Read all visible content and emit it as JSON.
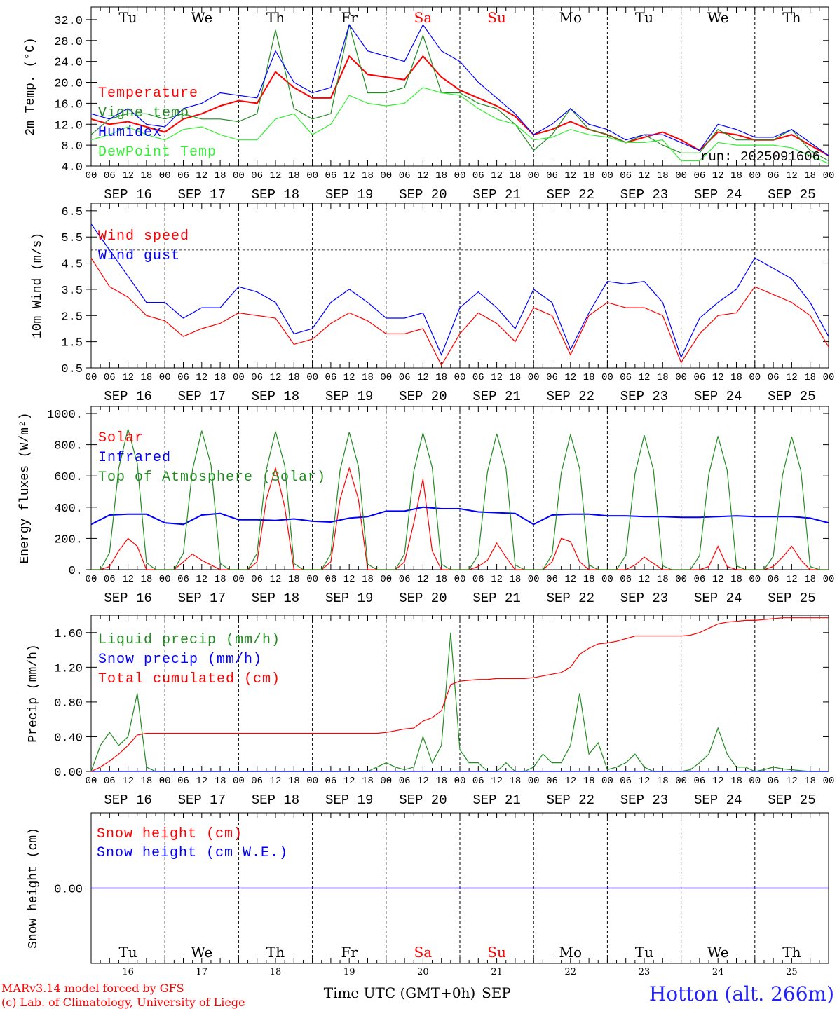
{
  "chart_data": [
    {
      "type": "line",
      "id": "temp",
      "ylabel": "2m Temp. (°C)",
      "ylim": [
        4.0,
        34.4
      ],
      "yticks": [
        4,
        8,
        12,
        16,
        20,
        24,
        28,
        32
      ],
      "ytick_labels": [
        "4.0",
        "8.0",
        "12.0",
        "16.0",
        "20.0",
        "24.0",
        "28.0",
        "32.0"
      ],
      "x_step_hours": 6,
      "series": [
        {
          "name": "Temperature",
          "color": "#ff0000",
          "values": [
            13,
            12,
            12.5,
            11.5,
            10.5,
            13,
            14,
            15.5,
            16.5,
            16,
            22,
            19,
            17,
            17,
            25,
            21.5,
            21,
            20.5,
            25,
            21,
            18.5,
            17,
            15.5,
            13.5,
            10,
            11,
            12.5,
            11,
            10,
            8.5,
            9.5,
            10.5,
            9,
            7,
            10.5,
            10,
            9,
            9,
            10,
            8,
            6
          ]
        },
        {
          "name": "Vigne temp",
          "color": "#228b22",
          "values": [
            10,
            13,
            14,
            14,
            13,
            14,
            13,
            13,
            12.5,
            14,
            30,
            15,
            13,
            14,
            31,
            18,
            18,
            19,
            29,
            18,
            18,
            16,
            15,
            12,
            7,
            10,
            15,
            11,
            10,
            8.5,
            10,
            8,
            6.5,
            6.5,
            11,
            9,
            9,
            9,
            11,
            7,
            5
          ]
        },
        {
          "name": "Humidex",
          "color": "#0000ff",
          "values": [
            14,
            13,
            15,
            12,
            11.5,
            15,
            16,
            18,
            17.5,
            17,
            26,
            20,
            18,
            19,
            31,
            26,
            25,
            24,
            31,
            26,
            24,
            20,
            17,
            14,
            10,
            12,
            15,
            12,
            11,
            9,
            10,
            10,
            8.5,
            7,
            12,
            11,
            9.5,
            9.5,
            11,
            8.5,
            6
          ]
        },
        {
          "name": "DewPoint Temp",
          "color": "#33ee33",
          "values": [
            9,
            10,
            11.5,
            10,
            9,
            11,
            11.5,
            10,
            9,
            9,
            13,
            14,
            10,
            12,
            17.5,
            16,
            15.5,
            16,
            19,
            18,
            17.5,
            15,
            13,
            12,
            9,
            9.5,
            11,
            10,
            9.5,
            8.5,
            8.5,
            9,
            5,
            5,
            8.5,
            8,
            8,
            8,
            7.5,
            6,
            4.5
          ]
        }
      ],
      "annotation": "run: 2025091606"
    },
    {
      "type": "line",
      "id": "wind",
      "ylabel": "10m Wind (m/s)",
      "ylim": [
        0.5,
        6.79
      ],
      "yticks": [
        0.5,
        1.5,
        2.5,
        3.5,
        4.5,
        5.5,
        6.5
      ],
      "ytick_labels": [
        "0.5",
        "1.5",
        "2.5",
        "3.5",
        "4.5",
        "5.5",
        "6.5"
      ],
      "reference_line": 5.0,
      "x_step_hours": 6,
      "series": [
        {
          "name": "Wind speed",
          "color": "#ff0000",
          "values": [
            4.7,
            3.6,
            3.2,
            2.5,
            2.3,
            1.7,
            2.0,
            2.2,
            2.6,
            2.5,
            2.4,
            1.4,
            1.6,
            2.2,
            2.6,
            2.3,
            1.8,
            1.8,
            2.0,
            0.6,
            1.8,
            2.6,
            2.2,
            1.5,
            2.8,
            2.5,
            1.0,
            2.5,
            3.0,
            2.8,
            2.8,
            2.5,
            0.7,
            1.8,
            2.5,
            2.6,
            3.6,
            3.3,
            3.0,
            2.5,
            1.3
          ]
        },
        {
          "name": "Wind gust",
          "color": "#0000ff",
          "values": [
            6.0,
            5.0,
            4.0,
            3.0,
            3.0,
            2.4,
            2.8,
            2.8,
            3.6,
            3.4,
            3.0,
            1.8,
            2.0,
            3.0,
            3.5,
            3.0,
            2.4,
            2.4,
            2.6,
            1.0,
            2.8,
            3.4,
            2.8,
            2.0,
            3.5,
            3.0,
            1.2,
            2.6,
            3.8,
            3.7,
            3.8,
            3.0,
            0.9,
            2.4,
            3.0,
            3.5,
            4.7,
            4.3,
            3.9,
            3.0,
            1.7
          ]
        }
      ]
    },
    {
      "type": "line",
      "id": "energy",
      "ylabel": "Energy fluxes (W/m²)",
      "ylim": [
        0,
        1045
      ],
      "yticks": [
        0,
        200,
        400,
        600,
        800,
        1000
      ],
      "ytick_labels": [
        "0.",
        "200.",
        "400.",
        "600.",
        "800.",
        "1000."
      ],
      "x_step_hours": 3,
      "series": [
        {
          "name": "Solar",
          "color": "#ff0000",
          "x_step_hours": 3,
          "values": [
            0,
            0,
            20,
            120,
            200,
            150,
            0,
            0,
            0,
            0,
            50,
            100,
            60,
            30,
            0,
            0,
            0,
            0,
            50,
            450,
            650,
            400,
            0,
            0,
            0,
            0,
            50,
            450,
            650,
            450,
            0,
            0,
            0,
            0,
            50,
            300,
            580,
            120,
            0,
            0,
            0,
            0,
            20,
            60,
            170,
            80,
            0,
            0,
            0,
            0,
            50,
            200,
            180,
            50,
            0,
            0,
            0,
            0,
            0,
            30,
            80,
            40,
            0,
            0,
            0,
            0,
            0,
            20,
            150,
            20,
            0,
            0,
            0,
            0,
            20,
            80,
            150,
            60,
            0,
            0,
            0
          ]
        },
        {
          "name": "Infrared",
          "color": "#0000ff",
          "x_step_hours": 6,
          "values": [
            290,
            350,
            355,
            355,
            300,
            290,
            350,
            360,
            320,
            320,
            315,
            325,
            310,
            305,
            330,
            340,
            375,
            375,
            400,
            390,
            390,
            370,
            365,
            360,
            290,
            350,
            355,
            355,
            345,
            345,
            340,
            340,
            335,
            335,
            340,
            345,
            340,
            340,
            340,
            330,
            300
          ]
        },
        {
          "name": "Top of Atmosphere (Solar)",
          "color": "#228b22",
          "x_step_hours": 3,
          "values": [
            0,
            0,
            110,
            650,
            900,
            680,
            45,
            0,
            0,
            0,
            105,
            640,
            890,
            670,
            40,
            0,
            0,
            0,
            105,
            640,
            885,
            665,
            40,
            0,
            0,
            0,
            100,
            635,
            880,
            660,
            35,
            0,
            0,
            0,
            100,
            630,
            875,
            655,
            35,
            0,
            0,
            0,
            95,
            625,
            870,
            650,
            30,
            0,
            0,
            0,
            95,
            620,
            865,
            645,
            30,
            0,
            0,
            0,
            90,
            615,
            860,
            640,
            25,
            0,
            0,
            0,
            90,
            610,
            855,
            635,
            25,
            0,
            0,
            0,
            85,
            605,
            850,
            630,
            20,
            0,
            0
          ]
        }
      ]
    },
    {
      "type": "line",
      "id": "precip",
      "ylabel": "Precip (mm/h)",
      "ylim": [
        0,
        1.8
      ],
      "yticks": [
        0,
        0.4,
        0.8,
        1.2,
        1.6
      ],
      "ytick_labels": [
        "0.00",
        "0.40",
        "0.80",
        "1.20",
        "1.60"
      ],
      "x_step_hours": 3,
      "series": [
        {
          "name": "Liquid precip (mm/h)",
          "color": "#228b22",
          "values": [
            0,
            0.3,
            0.45,
            0.3,
            0.4,
            0.9,
            0.05,
            0,
            0,
            0,
            0,
            0,
            0,
            0,
            0,
            0,
            0,
            0,
            0,
            0,
            0,
            0,
            0,
            0,
            0,
            0,
            0,
            0,
            0,
            0,
            0,
            0.05,
            0.1,
            0.05,
            0.02,
            0.05,
            0.4,
            0.1,
            0.3,
            1.6,
            0.25,
            0.1,
            0.1,
            0,
            0,
            0.1,
            0,
            0,
            0.05,
            0.2,
            0.1,
            0.1,
            0.3,
            0.9,
            0.2,
            0.33,
            0.02,
            0.05,
            0.1,
            0.2,
            0.05,
            0,
            0,
            0,
            0,
            0.02,
            0.1,
            0.2,
            0.5,
            0.2,
            0.05,
            0.05,
            0,
            0.02,
            0.05,
            0.03,
            0.02,
            0.01,
            0,
            0,
            0
          ]
        },
        {
          "name": "Snow precip (mm/h)",
          "color": "#0000ff",
          "values": [
            0,
            0,
            0,
            0,
            0,
            0,
            0,
            0,
            0,
            0,
            0,
            0,
            0,
            0,
            0,
            0,
            0,
            0,
            0,
            0,
            0,
            0,
            0,
            0,
            0,
            0,
            0,
            0,
            0,
            0,
            0,
            0,
            0,
            0,
            0,
            0,
            0,
            0,
            0,
            0,
            0,
            0,
            0,
            0,
            0,
            0,
            0,
            0,
            0,
            0,
            0,
            0,
            0,
            0,
            0,
            0,
            0,
            0,
            0,
            0,
            0,
            0,
            0,
            0,
            0,
            0,
            0,
            0,
            0,
            0,
            0,
            0,
            0,
            0,
            0,
            0,
            0,
            0,
            0,
            0,
            0
          ]
        },
        {
          "name": "Total cumulated (cm)",
          "color": "#ff0000",
          "values": [
            0,
            0.05,
            0.12,
            0.2,
            0.3,
            0.42,
            0.44,
            0.44,
            0.44,
            0.44,
            0.44,
            0.44,
            0.44,
            0.44,
            0.44,
            0.44,
            0.44,
            0.44,
            0.44,
            0.44,
            0.44,
            0.44,
            0.44,
            0.44,
            0.44,
            0.44,
            0.44,
            0.44,
            0.44,
            0.44,
            0.44,
            0.44,
            0.45,
            0.47,
            0.49,
            0.5,
            0.58,
            0.62,
            0.7,
            1.0,
            1.04,
            1.05,
            1.06,
            1.06,
            1.07,
            1.07,
            1.07,
            1.07,
            1.08,
            1.1,
            1.12,
            1.14,
            1.2,
            1.35,
            1.42,
            1.47,
            1.48,
            1.5,
            1.53,
            1.56,
            1.56,
            1.56,
            1.56,
            1.56,
            1.56,
            1.57,
            1.6,
            1.65,
            1.7,
            1.72,
            1.73,
            1.74,
            1.74,
            1.75,
            1.76,
            1.77,
            1.77,
            1.77,
            1.77,
            1.77,
            1.77
          ]
        }
      ]
    },
    {
      "type": "line",
      "id": "snow",
      "ylabel": "Snow height (cm)",
      "ylim": [
        -1,
        1
      ],
      "yticks": [
        0
      ],
      "ytick_labels": [
        "0.00"
      ],
      "x_step_hours": 24,
      "series": [
        {
          "name": "Snow height (cm)",
          "color": "#ff0000",
          "values": [
            0,
            0,
            0,
            0,
            0,
            0,
            0,
            0,
            0,
            0,
            0
          ]
        },
        {
          "name": "Snow height (cm W.E.)",
          "color": "#0000ff",
          "values": [
            0,
            0,
            0,
            0,
            0,
            0,
            0,
            0,
            0,
            0,
            0
          ]
        }
      ]
    }
  ],
  "time_axis": {
    "total_hours": 240,
    "hour_labels": [
      "00",
      "06",
      "12",
      "18"
    ],
    "final_hour_label": "00",
    "dates": [
      "SEP 16",
      "SEP 17",
      "SEP 18",
      "SEP 19",
      "SEP 20",
      "SEP 21",
      "SEP 22",
      "SEP 23",
      "SEP 24",
      "SEP 25"
    ],
    "weekdays": [
      "Tu",
      "We",
      "Th",
      "Fr",
      "Sa",
      "Su",
      "Mo",
      "Tu",
      "We",
      "Th"
    ],
    "weekend": [
      false,
      false,
      false,
      false,
      true,
      true,
      false,
      false,
      false,
      false
    ],
    "day_numbers": [
      "16",
      "17",
      "18",
      "19",
      "20",
      "21",
      "22",
      "23",
      "24",
      "25"
    ],
    "month": "SEP",
    "xlabel": "Time UTC (GMT+0h)"
  },
  "footer": {
    "credit_line1": "MARv3.14 model forced by GFS",
    "credit_line2": "(c) Lab. of Climatology, University of Liege",
    "location": "Hotton (alt. 266m)"
  },
  "colors": {
    "weekend": "#ff0000",
    "weekday": "#000000",
    "location": "#2222ff",
    "credit": "#ff0000"
  }
}
